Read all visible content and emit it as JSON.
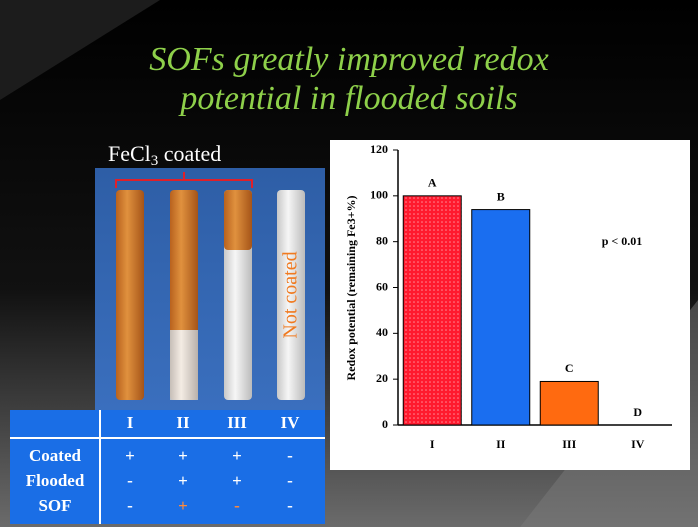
{
  "slide": {
    "title_lines": [
      "SOFs greatly improved redox",
      "potential in flooded soils"
    ],
    "photo": {
      "caption_parts": [
        "FeCl",
        "3",
        " coated"
      ],
      "tube_label": "Not coated"
    },
    "table": {
      "columns": [
        "I",
        "II",
        "III",
        "IV"
      ],
      "rows": [
        {
          "label": "Coated",
          "cells": [
            "+",
            "+",
            "+",
            "-"
          ]
        },
        {
          "label": "Flooded",
          "cells": [
            "-",
            "+",
            "+",
            "-"
          ]
        },
        {
          "label": "SOF",
          "cells": [
            "-",
            "+",
            "-",
            "-"
          ]
        }
      ]
    }
  },
  "chart_data": {
    "type": "bar",
    "y_label": "Redox potential (remaining Fe3+%)",
    "categories": [
      "I",
      "II",
      "III",
      "IV"
    ],
    "values": [
      100,
      94,
      19,
      0
    ],
    "significance_letters": [
      "A",
      "B",
      "C",
      "D"
    ],
    "colors": [
      "#ff1a2e",
      "#1a6ef0",
      "#ff6a10",
      "#ff6a10"
    ],
    "ylim": [
      0,
      120
    ],
    "yticks": [
      0,
      20,
      40,
      60,
      80,
      100,
      120
    ],
    "annotation": "p < 0.01"
  }
}
